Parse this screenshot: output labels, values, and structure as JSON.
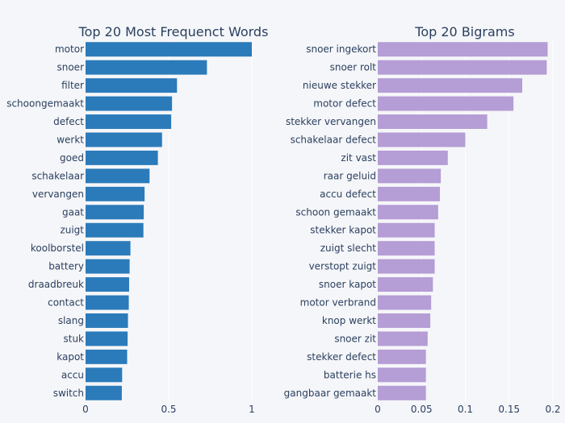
{
  "chart_data": [
    {
      "type": "bar",
      "orientation": "horizontal",
      "title": "Top 20 Most Frequenct Words",
      "color": "#2b7bba",
      "xlim": [
        0,
        1
      ],
      "xticks": [
        0,
        0.5,
        1
      ],
      "xtick_labels": [
        "0",
        "0.5",
        "1"
      ],
      "categories": [
        "motor",
        "snoer",
        "filter",
        "schoongemaakt",
        "defect",
        "werkt",
        "goed",
        "schakelaar",
        "vervangen",
        "gaat",
        "zuigt",
        "koolborstel",
        "battery",
        "draadbreuk",
        "contact",
        "slang",
        "stuk",
        "kapot",
        "accu",
        "switch"
      ],
      "values": [
        1.0,
        0.73,
        0.55,
        0.52,
        0.515,
        0.46,
        0.435,
        0.385,
        0.355,
        0.35,
        0.348,
        0.27,
        0.265,
        0.262,
        0.26,
        0.255,
        0.253,
        0.25,
        0.22,
        0.218
      ]
    },
    {
      "type": "bar",
      "orientation": "horizontal",
      "title": "Top 20 Bigrams",
      "color": "#b59dd5",
      "xlim": [
        0,
        0.2
      ],
      "xticks": [
        0,
        0.05,
        0.1,
        0.15,
        0.2
      ],
      "xtick_labels": [
        "0",
        "0.05",
        "0.1",
        "0.15",
        "0.2"
      ],
      "categories": [
        "snoer ingekort",
        "snoer rolt",
        "nieuwe stekker",
        "motor defect",
        "stekker vervangen",
        "schakelaar defect",
        "zit vast",
        "raar geluid",
        "accu defect",
        "schoon gemaakt",
        "stekker kapot",
        "zuigt slecht",
        "verstopt zuigt",
        "snoer kapot",
        "motor verbrand",
        "knop werkt",
        "snoer zit",
        "stekker defect",
        "batterie hs",
        "gangbaar gemaakt"
      ],
      "values": [
        0.194,
        0.193,
        0.165,
        0.155,
        0.125,
        0.1,
        0.08,
        0.072,
        0.071,
        0.069,
        0.065,
        0.065,
        0.065,
        0.063,
        0.061,
        0.06,
        0.057,
        0.055,
        0.055,
        0.055
      ]
    }
  ]
}
